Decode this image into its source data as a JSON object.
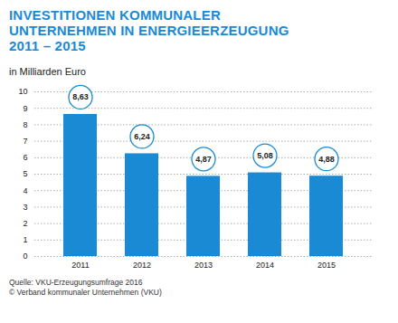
{
  "chart_data": {
    "type": "bar",
    "title": "INVESTITIONEN KOMMUNALER UNTERNEHMEN IN ENERGIEERZEUGUNG 2011 – 2015",
    "subtitle": "in Milliarden Euro",
    "categories": [
      "2011",
      "2012",
      "2013",
      "2014",
      "2015"
    ],
    "values": [
      8.63,
      6.24,
      4.87,
      5.08,
      4.88
    ],
    "value_labels": [
      "8,63",
      "6,24",
      "4,87",
      "5,08",
      "4,88"
    ],
    "color": "#1a8ad4",
    "ylim": [
      0,
      10
    ],
    "yticks": [
      0,
      1,
      2,
      3,
      4,
      5,
      6,
      7,
      8,
      9,
      10
    ],
    "grid": true,
    "data_labels": true,
    "source": [
      "Quelle: VKU-Erzeugungsumfrage 2016",
      "© Verband kommunaler Unternehmen (VKU)"
    ]
  }
}
